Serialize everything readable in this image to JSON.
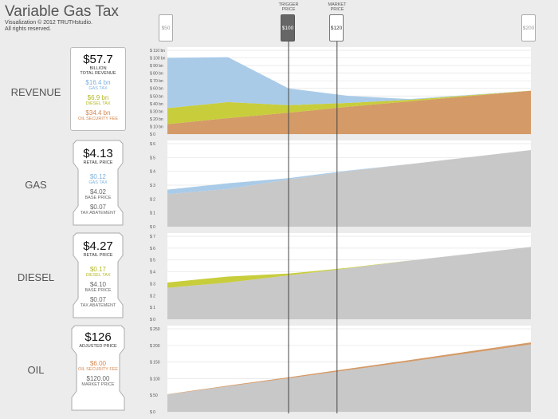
{
  "header": {
    "title": "Variable Gas Tax",
    "subtitle1": "Visualization © 2012 TRUTHstudio.",
    "subtitle2": "All rights reserved."
  },
  "slider": {
    "trigger_label_1": "TRIGGER",
    "trigger_label_2": "PRICE",
    "market_label_1": "MARKET",
    "market_label_2": "PRICE",
    "min_tag": "$50",
    "trigger_tag": "$100",
    "market_tag": "$120",
    "max_tag": "$200",
    "trigger_value": 100,
    "market_value": 120
  },
  "rows": {
    "revenue": "REVENUE",
    "gas": "GAS",
    "diesel": "DIESEL",
    "oil": "OIL"
  },
  "cards": {
    "revenue": {
      "total": "$57.7",
      "total_unit": "BILLION",
      "total_label": "TOTAL REVENUE",
      "gas_tax": "$16.4 bn",
      "gas_tax_label": "GAS TAX",
      "diesel_tax": "$6.9 bn",
      "diesel_tax_label": "DIESEL TAX",
      "oil_fee": "$34.4 bn",
      "oil_fee_label": "OIL SECURITY FEE"
    },
    "gas": {
      "retail": "$4.13",
      "retail_label": "RETAIL PRICE",
      "tax": "$0.12",
      "tax_label": "GAS TAX",
      "base": "$4.02",
      "base_label": "BASE PRICE",
      "abatement": "$0.07",
      "abatement_label": "TAX ABATEMENT"
    },
    "diesel": {
      "retail": "$4.27",
      "retail_label": "RETAIL PRICE",
      "tax": "$0.17",
      "tax_label": "DIESEL TAX",
      "base": "$4.10",
      "base_label": "BASE PRICE",
      "abatement": "$0.07",
      "abatement_label": "TAX ABATEMENT"
    },
    "oil": {
      "adjusted": "$126",
      "adjusted_label": "ADJUSTED PRICE",
      "fee": "$6.00",
      "fee_label": "OIL SECURITY FEE",
      "market": "$120.00",
      "market_label": "MARKET PRICE"
    }
  },
  "colors": {
    "gas_tax": "#a9cbe8",
    "diesel_tax": "#c8cd3c",
    "oil_fee": "#d49a67",
    "base": "#c8c8c8",
    "oil_fee_text": "#d5874f",
    "diesel_text": "#b2b820",
    "gas_text": "#7fb1de"
  },
  "chart_data": [
    {
      "type": "area",
      "name": "revenue",
      "x": [
        50,
        75,
        100,
        125,
        150,
        200
      ],
      "xlim": [
        50,
        200
      ],
      "ylim": [
        0,
        110
      ],
      "yticks": [
        "$ 0",
        "$ 10 bn",
        "$ 20 bn",
        "$ 30 bn",
        "$ 40 bn",
        "$ 50 bn",
        "$ 60 bn",
        "$ 70 bn",
        "$ 80 bn",
        "$ 90 bn",
        "$ 100 bn",
        "$ 110 bn"
      ],
      "series": [
        {
          "name": "OIL SECURITY FEE",
          "values": [
            13,
            21,
            28,
            36,
            43,
            57
          ]
        },
        {
          "name": "DIESEL TAX",
          "values": [
            21,
            21,
            10,
            5,
            2,
            0
          ]
        },
        {
          "name": "GAS TAX",
          "values": [
            66,
            59,
            22,
            9,
            1,
            0
          ]
        }
      ]
    },
    {
      "type": "area",
      "name": "gas",
      "x": [
        50,
        75,
        100,
        125,
        150,
        200
      ],
      "xlim": [
        50,
        200
      ],
      "ylim": [
        0,
        6.5
      ],
      "yticks": [
        "$ 0",
        "$ 1",
        "$ 2",
        "$ 3",
        "$ 4",
        "$ 5",
        "$ 6"
      ],
      "series": [
        {
          "name": "BASE PRICE",
          "values": [
            2.55,
            2.95,
            3.7,
            4.35,
            4.9,
            6.0
          ]
        },
        {
          "name": "GAS TAX",
          "values": [
            0.35,
            0.45,
            0.1,
            0.05,
            0,
            0
          ]
        }
      ]
    },
    {
      "type": "area",
      "name": "diesel",
      "x": [
        50,
        75,
        100,
        125,
        150,
        200
      ],
      "xlim": [
        50,
        200
      ],
      "ylim": [
        0,
        7
      ],
      "yticks": [
        "$ 0",
        "$ 1",
        "$ 2",
        "$ 3",
        "$ 4",
        "$ 5",
        "$ 6",
        "$ 7"
      ],
      "series": [
        {
          "name": "BASE PRICE",
          "values": [
            2.65,
            3.1,
            3.7,
            4.3,
            4.95,
            6.1
          ]
        },
        {
          "name": "DIESEL TAX",
          "values": [
            0.45,
            0.5,
            0.15,
            0.05,
            0,
            0
          ]
        }
      ]
    },
    {
      "type": "area",
      "name": "oil",
      "x": [
        50,
        75,
        100,
        125,
        150,
        200
      ],
      "xlim": [
        50,
        200
      ],
      "ylim": [
        0,
        250
      ],
      "yticks": [
        "$ 0",
        "$ 50",
        "$ 100",
        "$ 150",
        "$ 200",
        "$ 250"
      ],
      "series": [
        {
          "name": "MARKET PRICE",
          "values": [
            52,
            77,
            101,
            126,
            151,
            203
          ]
        },
        {
          "name": "OIL SECURITY FEE",
          "values": [
            1,
            2,
            3,
            4,
            5,
            6
          ]
        }
      ]
    }
  ]
}
